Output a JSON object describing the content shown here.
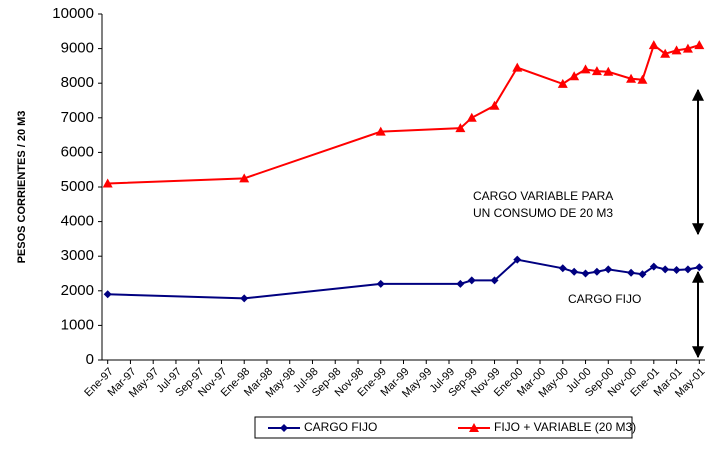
{
  "chart_data": {
    "type": "line",
    "ylabel": "PESOS CORRIENTES / 20 M3",
    "annotations": [
      "CARGO  VARIABLE PARA",
      "UN CONSUMO DE 20 M3",
      "CARGO FIJO"
    ],
    "x": [
      "1997-01",
      "1998-01",
      "1999-01",
      "1999-08",
      "1999-09",
      "1999-11",
      "2000-01",
      "2000-05",
      "2000-06",
      "2000-07",
      "2000-08",
      "2000-09",
      "2000-11",
      "2000-12",
      "2001-01",
      "2001-02",
      "2001-03",
      "2001-04",
      "2001-05"
    ],
    "series": [
      {
        "name": "CARGO FIJO",
        "color": "#000080",
        "marker": "diamond",
        "values": [
          1900,
          1780,
          2200,
          2200,
          2300,
          2300,
          2900,
          2650,
          2550,
          2500,
          2550,
          2620,
          2520,
          2480,
          2700,
          2620,
          2600,
          2620,
          2680
        ]
      },
      {
        "name": "FIJO + VARIABLE (20 M3)",
        "color": "#ff0000",
        "marker": "triangle",
        "values": [
          5100,
          5250,
          6600,
          6700,
          7000,
          7350,
          8450,
          7980,
          8200,
          8400,
          8350,
          8330,
          8130,
          8100,
          9100,
          8850,
          8950,
          9000,
          9100
        ]
      }
    ],
    "xlim": [
      "1997-01",
      "2001-05"
    ],
    "xticks": [
      {
        "value": "1997-01",
        "label": "Ene-97"
      },
      {
        "value": "1997-03",
        "label": "Mar-97"
      },
      {
        "value": "1997-05",
        "label": "May-97"
      },
      {
        "value": "1997-07",
        "label": "Jul-97"
      },
      {
        "value": "1997-09",
        "label": "Sep-97"
      },
      {
        "value": "1997-11",
        "label": "Nov-97"
      },
      {
        "value": "1998-01",
        "label": "Ene-98"
      },
      {
        "value": "1998-03",
        "label": "Mar-98"
      },
      {
        "value": "1998-05",
        "label": "May-98"
      },
      {
        "value": "1998-07",
        "label": "Jul-98"
      },
      {
        "value": "1998-09",
        "label": "Sep-98"
      },
      {
        "value": "1998-11",
        "label": "Nov-98"
      },
      {
        "value": "1999-01",
        "label": "Ene-99"
      },
      {
        "value": "1999-03",
        "label": "Mar-99"
      },
      {
        "value": "1999-05",
        "label": "May-99"
      },
      {
        "value": "1999-07",
        "label": "Jul-99"
      },
      {
        "value": "1999-09",
        "label": "Sep-99"
      },
      {
        "value": "1999-11",
        "label": "Nov-99"
      },
      {
        "value": "2000-01",
        "label": "Ene-00"
      },
      {
        "value": "2000-03",
        "label": "Mar-00"
      },
      {
        "value": "2000-05",
        "label": "May-00"
      },
      {
        "value": "2000-07",
        "label": "Jul-00"
      },
      {
        "value": "2000-09",
        "label": "Sep-00"
      },
      {
        "value": "2000-11",
        "label": "Nov-00"
      },
      {
        "value": "2001-01",
        "label": "Ene-01"
      },
      {
        "value": "2001-03",
        "label": "Mar-01"
      },
      {
        "value": "2001-05",
        "label": "May-01"
      }
    ],
    "ylim": [
      0,
      10000
    ],
    "yticks": [
      0,
      1000,
      2000,
      3000,
      4000,
      5000,
      6000,
      7000,
      8000,
      9000,
      10000
    ],
    "grid": false
  }
}
